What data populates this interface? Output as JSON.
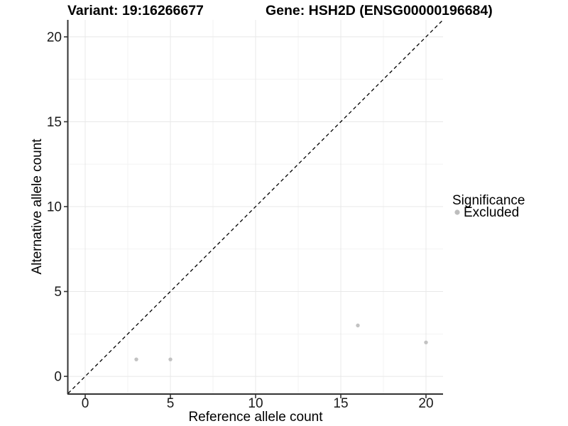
{
  "figure": {
    "background": "#ffffff",
    "text_color": "#000000",
    "axis_color": "#333333",
    "grid_major_color": "#e8e8e8",
    "grid_minor_color": "#f3f3f3"
  },
  "chart_data": {
    "type": "scatter",
    "title_left": "Variant: 19:16266677",
    "title_right": "Gene: HSH2D (ENSG00000196684)",
    "xlabel": "Reference allele count",
    "ylabel": "Alternative allele count",
    "xlim": [
      -1,
      21
    ],
    "ylim": [
      -1,
      21
    ],
    "x_ticks": [
      0,
      5,
      10,
      15,
      20
    ],
    "y_ticks": [
      0,
      5,
      10,
      15,
      20
    ],
    "grid": "major and minor gridlines, light gray on white panel",
    "series": [
      {
        "name": "Excluded",
        "color": "#c2c2c2",
        "marker": "circle",
        "points": [
          {
            "x": 3,
            "y": 1
          },
          {
            "x": 5,
            "y": 1
          },
          {
            "x": 16,
            "y": 3
          },
          {
            "x": 20,
            "y": 2
          }
        ]
      }
    ],
    "reference_line": {
      "type": "identity y=x",
      "style": "dashed",
      "color": "#000000",
      "from": -1,
      "to": 21
    },
    "legend": {
      "title": "Significance",
      "position": "right",
      "entries": [
        {
          "label": "Excluded",
          "color": "#bdbdbd"
        }
      ]
    }
  }
}
